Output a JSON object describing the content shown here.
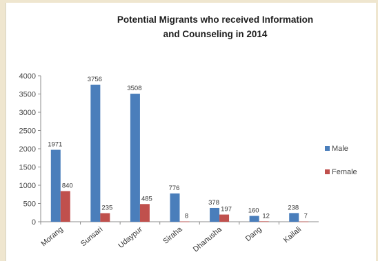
{
  "chart_data": {
    "type": "bar",
    "title_line1": "Potential Migrants who received Information",
    "title_line2": "and Counseling in 2014",
    "categories": [
      "Morang",
      "Sunsari",
      "Udaypur",
      "Siraha",
      "Dhanusha",
      "Dang",
      "Kailali"
    ],
    "series": [
      {
        "name": "Male",
        "color": "#4a7ebb",
        "values": [
          1971,
          3756,
          3508,
          776,
          378,
          160,
          238
        ]
      },
      {
        "name": "Female",
        "color": "#c0504d",
        "values": [
          840,
          235,
          485,
          8,
          197,
          12,
          7
        ]
      }
    ],
    "y_ticks": [
      0,
      500,
      1000,
      1500,
      2000,
      2500,
      3000,
      3500,
      4000
    ],
    "ylim": [
      0,
      4000
    ],
    "grid": false,
    "legend_position": "right"
  }
}
